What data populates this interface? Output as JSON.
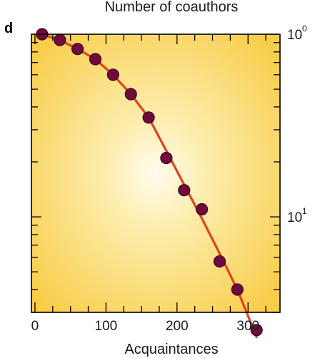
{
  "chart_data": {
    "type": "scatter",
    "panel_label": "d",
    "top_title": "Number of coauthors",
    "xlabel": "Acquaintances",
    "xlim": [
      -5,
      345
    ],
    "x_ticks": [
      0,
      100,
      200,
      300
    ],
    "y_right_ticks": [
      {
        "label_base": "10",
        "label_exp": "0",
        "value": 1
      },
      {
        "label_base": "10",
        "label_exp": "1",
        "value": 10
      }
    ],
    "ylim_log": [
      0.03,
      1
    ],
    "y_scale": "log",
    "series": [
      {
        "kind": "points",
        "x": [
          10,
          35,
          60,
          85,
          110,
          135,
          160,
          185,
          210,
          235,
          260,
          285,
          312
        ],
        "y": [
          1.0,
          0.93,
          0.83,
          0.73,
          0.6,
          0.47,
          0.35,
          0.21,
          0.14,
          0.11,
          0.057,
          0.04,
          0.024
        ]
      },
      {
        "kind": "fit-line",
        "x": [
          10,
          35,
          60,
          85,
          110,
          135,
          160,
          185,
          210,
          235,
          260,
          285,
          312
        ],
        "y": [
          1.0,
          0.93,
          0.83,
          0.73,
          0.6,
          0.47,
          0.35,
          0.23,
          0.15,
          0.098,
          0.063,
          0.04,
          0.022
        ]
      }
    ],
    "colors": {
      "background_center": "#fffcf0",
      "background_edge": "#f8cd4a",
      "marker_fill": "#6e0b3c",
      "marker_stroke": "#3a0520",
      "fit_line": "#e2431c"
    },
    "grid": false
  }
}
